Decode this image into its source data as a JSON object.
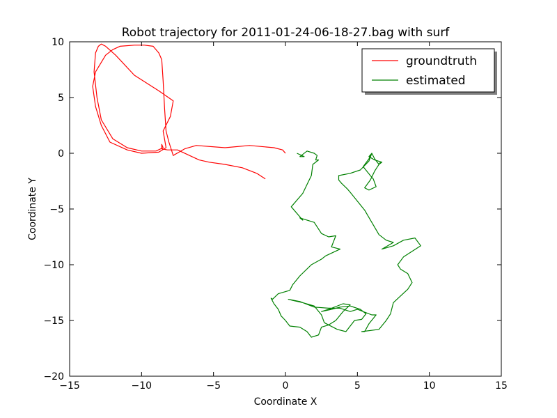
{
  "chart_data": {
    "type": "line",
    "title": "Robot trajectory for 2011-01-24-06-18-27.bag with surf",
    "xlabel": "Coordinate X",
    "ylabel": "Coordinate Y",
    "xlim": [
      -15,
      15
    ],
    "ylim": [
      -20,
      10
    ],
    "xticks": [
      -15,
      -10,
      -5,
      0,
      5,
      10,
      15
    ],
    "yticks": [
      -20,
      -15,
      -10,
      -5,
      0,
      5,
      10
    ],
    "xtick_labels": [
      "−15",
      "−10",
      "−5",
      "0",
      "5",
      "10",
      "15"
    ],
    "ytick_labels": [
      "−20",
      "−15",
      "−10",
      "−5",
      "0",
      "5",
      "10"
    ],
    "grid": false,
    "legend_position": "top-right",
    "series": [
      {
        "name": "groundtruth",
        "color": "#ff0000",
        "x": [
          0.0,
          -0.2,
          -0.8,
          -2.5,
          -4.2,
          -6.2,
          -7.0,
          -7.8,
          -8.1,
          -8.3,
          -8.4,
          -8.5,
          -8.6,
          -8.8,
          -9.2,
          -9.8,
          -10.5,
          -11.5,
          -12.0,
          -12.5,
          -13.2,
          -13.4,
          -13.2,
          -12.8,
          -12.2,
          -11.0,
          -10.0,
          -8.8,
          -8.3,
          -8.5,
          -8.0,
          -7.8,
          -8.8,
          -10.5,
          -11.8,
          -12.5,
          -12.8,
          -13.0,
          -13.2,
          -13.3,
          -13.1,
          -12.8,
          -12.0,
          -11.0,
          -10.0,
          -9.0,
          -8.5,
          -8.6,
          -8.6,
          -8.2,
          -7.5,
          -6.5,
          -6.0,
          -5.3,
          -4.2,
          -3.0,
          -2.0,
          -1.4
        ],
        "y": [
          0.0,
          0.3,
          0.5,
          0.7,
          0.5,
          0.7,
          0.4,
          -0.2,
          1.0,
          2.0,
          4.0,
          6.5,
          8.4,
          9.0,
          9.6,
          9.7,
          9.7,
          9.6,
          9.3,
          8.8,
          7.3,
          6.0,
          4.2,
          2.5,
          1.0,
          0.3,
          0.0,
          0.1,
          0.5,
          2.0,
          3.3,
          4.7,
          5.6,
          7.0,
          8.8,
          9.6,
          9.8,
          9.6,
          9.0,
          7.3,
          5.0,
          3.0,
          1.3,
          0.5,
          0.2,
          0.2,
          0.5,
          0.8,
          0.4,
          0.3,
          0.3,
          -0.3,
          -0.6,
          -0.8,
          -1.0,
          -1.3,
          -1.8,
          -2.3
        ]
      },
      {
        "name": "estimated",
        "color": "#008000",
        "x": [
          0.8,
          1.3,
          1.0,
          1.5,
          2.0,
          2.2,
          2.1,
          2.3,
          1.9,
          1.8,
          1.5,
          1.2,
          0.4,
          1.2,
          1.0,
          2.0,
          2.5,
          3.0,
          3.5,
          3.2,
          3.8,
          2.8,
          2.5,
          1.8,
          1.0,
          0.5,
          0.3,
          -0.5,
          -0.9,
          -1.0,
          -0.8,
          -0.5,
          -0.3,
          0.0,
          0.3,
          1.0,
          1.5,
          1.8,
          2.3,
          2.5,
          3.0,
          3.5,
          4.0,
          4.5,
          4.0,
          3.0,
          2.5,
          3.2,
          3.8,
          4.5,
          5.2,
          5.6,
          5.3,
          4.8,
          4.5,
          4.2,
          3.6,
          2.7,
          2.5,
          2.0,
          1.2,
          0.5,
          0.2,
          1.0,
          2.0,
          3.0,
          3.8,
          4.5,
          5.0,
          5.6,
          6.0,
          6.3,
          5.8,
          5.5,
          5.3,
          6.5,
          7.0,
          7.3,
          7.5,
          8.0,
          8.5,
          8.8,
          8.5,
          8.0,
          7.8,
          8.2,
          8.8,
          9.4,
          9.0,
          8.2,
          7.5,
          6.7,
          7.5,
          7.0,
          6.5,
          6.0,
          5.5,
          5.0,
          4.5,
          4.3,
          3.9,
          3.7,
          3.7,
          4.5,
          5.2,
          5.8,
          6.0,
          6.2,
          6.5,
          6.7,
          6.2,
          5.8,
          6.0,
          5.8,
          5.4,
          5.9,
          6.1,
          6.3,
          5.8,
          5.5,
          5.9,
          6.2,
          6.6
        ],
        "y": [
          0.0,
          -0.3,
          -0.3,
          0.2,
          0.0,
          -0.2,
          -0.6,
          -0.6,
          -1.0,
          -2.0,
          -2.8,
          -3.6,
          -4.8,
          -6.0,
          -5.8,
          -6.2,
          -7.2,
          -7.5,
          -7.4,
          -8.4,
          -8.6,
          -9.2,
          -9.5,
          -10.0,
          -11.0,
          -11.8,
          -12.3,
          -12.6,
          -13.1,
          -13.0,
          -13.5,
          -14.0,
          -14.6,
          -15.0,
          -15.5,
          -15.6,
          -16.0,
          -16.5,
          -16.3,
          -15.6,
          -15.4,
          -15.0,
          -14.2,
          -13.6,
          -13.5,
          -14.0,
          -14.2,
          -14.0,
          -13.8,
          -13.7,
          -14.0,
          -14.4,
          -14.9,
          -15.0,
          -15.5,
          -16.0,
          -15.8,
          -15.2,
          -14.5,
          -13.7,
          -13.4,
          -13.2,
          -13.1,
          -13.3,
          -13.8,
          -13.9,
          -13.9,
          -14.2,
          -14.0,
          -14.3,
          -14.5,
          -14.5,
          -15.3,
          -16.0,
          -16.0,
          -15.8,
          -15.0,
          -14.4,
          -13.4,
          -12.8,
          -12.2,
          -11.6,
          -10.8,
          -10.4,
          -10.0,
          -9.3,
          -8.8,
          -8.3,
          -7.6,
          -7.8,
          -8.3,
          -8.6,
          -8.0,
          -7.8,
          -7.3,
          -6.2,
          -5.1,
          -4.3,
          -3.5,
          -3.2,
          -2.7,
          -2.4,
          -2.0,
          -1.8,
          -1.5,
          -0.7,
          0.0,
          -0.5,
          -1.0,
          -0.8,
          -0.6,
          -0.3,
          0.0,
          -0.5,
          -1.2,
          -2.0,
          -2.3,
          -3.0,
          -3.3,
          -3.1,
          -2.4,
          -1.6,
          -0.8
        ]
      }
    ]
  }
}
